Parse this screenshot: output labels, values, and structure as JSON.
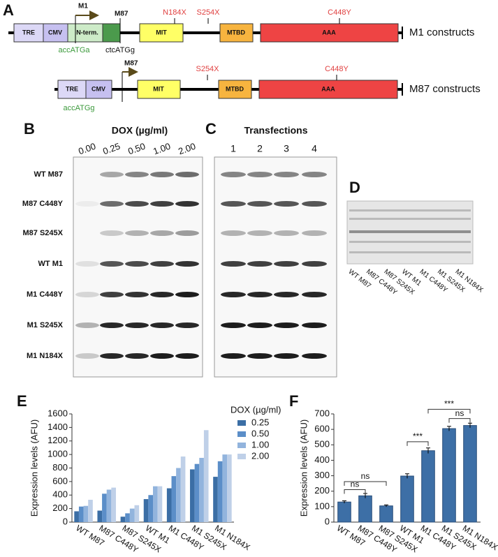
{
  "panel_labels": [
    "A",
    "B",
    "C",
    "D",
    "E",
    "F"
  ],
  "panel_a": {
    "m1_row": {
      "label": "M1 constructs",
      "start": "M1",
      "site": "M87",
      "boxes": [
        "TRE",
        "CMV",
        "N-term.",
        "MIT",
        "MTBD",
        "AAA"
      ],
      "mutations": [
        "N184X",
        "S254X",
        "C448Y"
      ],
      "sequences": [
        "accATGa",
        "ctcATGg"
      ]
    },
    "m87_row": {
      "label": "M87 constructs",
      "start": "M87",
      "boxes": [
        "TRE",
        "CMV",
        "MIT",
        "MTBD",
        "AAA"
      ],
      "mutations": [
        "S254X",
        "C448Y"
      ],
      "sequences": [
        "accATGg"
      ]
    }
  },
  "panel_b": {
    "title": "DOX (µg/ml)",
    "lanes": [
      "0.00",
      "0.25",
      "0.50",
      "1.00",
      "2.00"
    ],
    "rows": [
      "WT M87",
      "M87 C448Y",
      "M87 S245X",
      "WT M1",
      "M1 C448Y",
      "M1 S245X",
      "M1 N184X"
    ]
  },
  "panel_c": {
    "title": "Transfections",
    "lanes": [
      "1",
      "2",
      "3",
      "4"
    ]
  },
  "panel_d": {
    "lanes": [
      "WT M87",
      "M87 C448Y",
      "M87 S245X",
      "WT M1",
      "M1 C448Y",
      "M1 S245X",
      "M1 N184X"
    ]
  },
  "chart_data": [
    {
      "type": "bar",
      "y_label": "Expression levels (AFU)",
      "legend_title": "DOX (µg/ml)",
      "categories": [
        "WT M87",
        "M87 C448Y",
        "M87 S245X",
        "WT M1",
        "M1 C448Y",
        "M1 S245X",
        "M1 N184X"
      ],
      "series": [
        {
          "name": "0.25",
          "color": "#3b6ea5",
          "values": [
            160,
            170,
            80,
            340,
            500,
            780,
            670
          ]
        },
        {
          "name": "0.50",
          "color": "#5b8ec8",
          "values": [
            230,
            420,
            130,
            400,
            680,
            860,
            900
          ]
        },
        {
          "name": "1.00",
          "color": "#92b4dd",
          "values": [
            240,
            480,
            200,
            530,
            800,
            950,
            1000
          ]
        },
        {
          "name": "2.00",
          "color": "#bfd0e8",
          "values": [
            330,
            510,
            250,
            530,
            970,
            1360,
            1000
          ]
        }
      ],
      "ylim": [
        0,
        1600
      ],
      "yticks": [
        0,
        200,
        400,
        600,
        800,
        1000,
        1200,
        1400,
        1600
      ]
    },
    {
      "type": "bar",
      "y_label": "Expression levels (AFU)",
      "color": "#3d6fa6",
      "categories": [
        "WT M87",
        "M87 C448Y",
        "M87 S245X",
        "WT M1",
        "M1 C448Y",
        "M1 S245X",
        "M1 N184X"
      ],
      "values": [
        130,
        170,
        105,
        298,
        462,
        605,
        625
      ],
      "errors": [
        8,
        15,
        6,
        15,
        18,
        15,
        15
      ],
      "ylim": [
        0,
        700
      ],
      "yticks": [
        0,
        100,
        200,
        300,
        400,
        500,
        600,
        700
      ],
      "annotations": [
        "ns",
        "ns",
        "***",
        "***",
        "ns"
      ]
    }
  ]
}
